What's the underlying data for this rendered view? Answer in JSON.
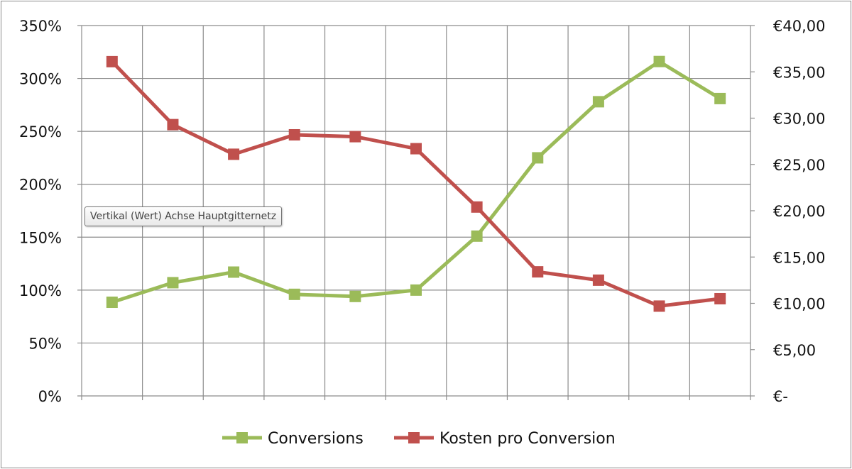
{
  "chart_data": {
    "type": "line",
    "title": "",
    "categories_count": 11,
    "y_left": {
      "ticks": [
        "0%",
        "50%",
        "100%",
        "150%",
        "200%",
        "250%",
        "300%",
        "350%"
      ],
      "range": [
        0,
        350
      ],
      "unit": "%"
    },
    "y_right": {
      "ticks": [
        "€-",
        "€5,00",
        "€10,00",
        "€15,00",
        "€20,00",
        "€25,00",
        "€30,00",
        "€35,00",
        "€40,00"
      ],
      "range": [
        0,
        40
      ],
      "unit": "EUR"
    },
    "grid": true,
    "legend_position": "bottom",
    "series": [
      {
        "name": "Conversions",
        "axis": "left",
        "color": "#9BBB59",
        "values": [
          88.5,
          107,
          117,
          96,
          94,
          100,
          151,
          225,
          278,
          316,
          281
        ]
      },
      {
        "name": "Kosten pro Conversion",
        "axis": "right",
        "color": "#C0504D",
        "values": [
          36.1,
          29.3,
          26.1,
          28.2,
          28.0,
          26.7,
          20.4,
          13.4,
          12.5,
          9.7,
          10.5
        ]
      }
    ]
  },
  "tooltip": {
    "text": "Vertikal (Wert) Achse Hauptgitternetz"
  }
}
